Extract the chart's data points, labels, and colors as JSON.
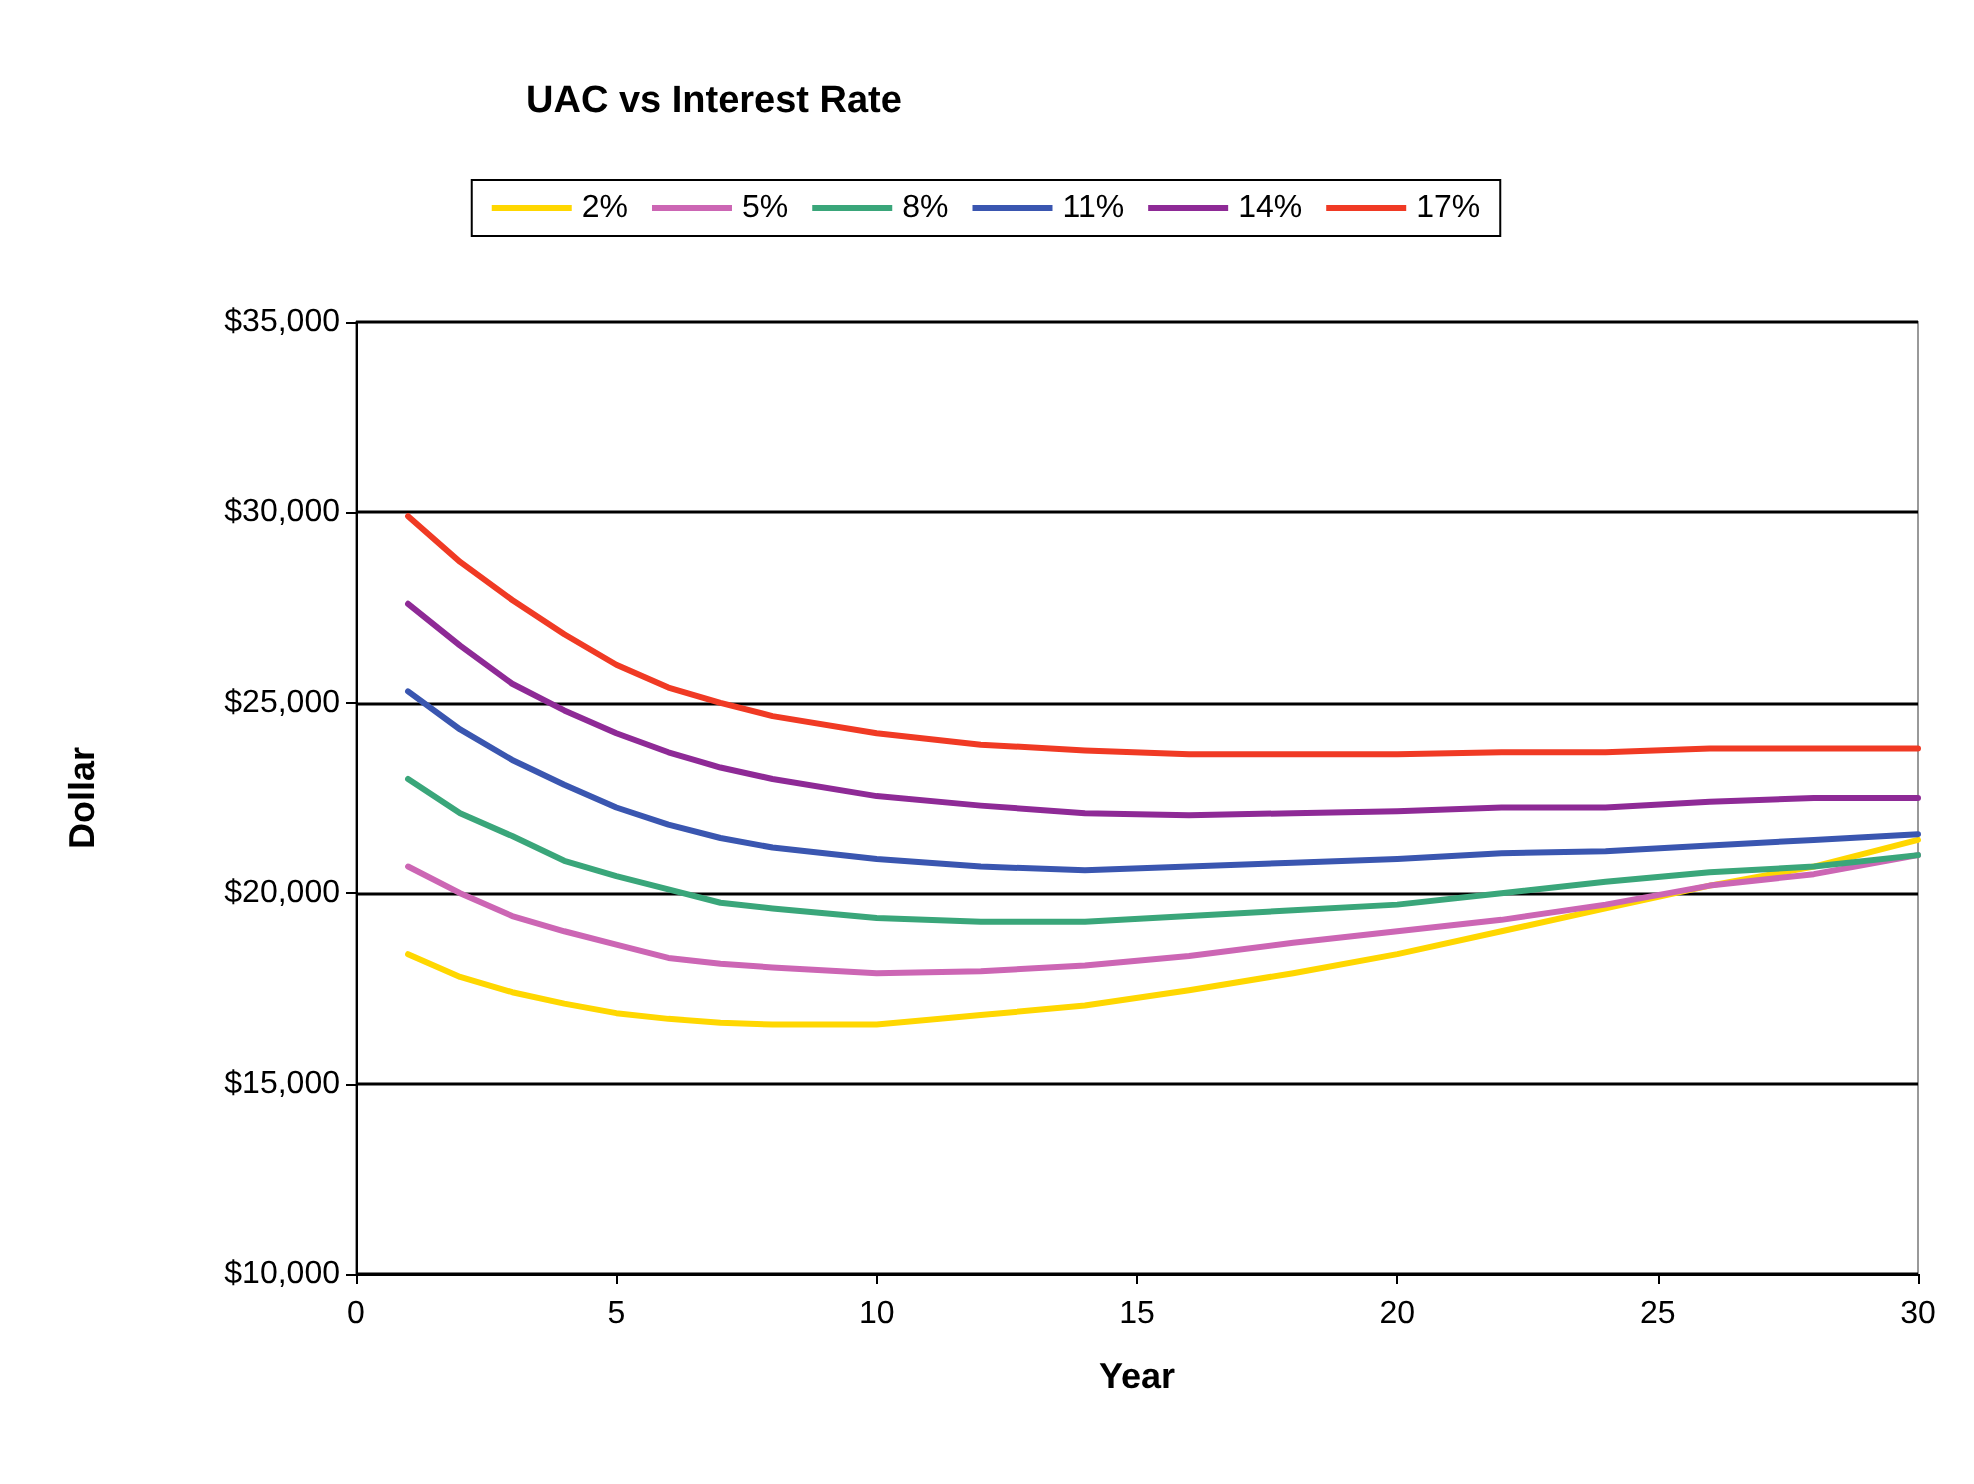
{
  "chart_data": {
    "type": "line",
    "title": "UAC vs Interest Rate",
    "xlabel": "Year",
    "ylabel": "Dollar",
    "x": [
      1,
      2,
      3,
      4,
      5,
      6,
      7,
      8,
      10,
      12,
      14,
      16,
      18,
      20,
      22,
      24,
      26,
      28,
      30
    ],
    "series": [
      {
        "name": "2%",
        "color": "#ffd700",
        "values": [
          18400,
          17800,
          17400,
          17100,
          16850,
          16700,
          16600,
          16550,
          16550,
          16800,
          17050,
          17450,
          17900,
          18400,
          19000,
          19600,
          20200,
          20700,
          21400
        ]
      },
      {
        "name": "5%",
        "color": "#cc66b4",
        "values": [
          20700,
          20000,
          19400,
          19000,
          18650,
          18300,
          18150,
          18050,
          17900,
          17950,
          18100,
          18350,
          18700,
          19000,
          19300,
          19700,
          20200,
          20500,
          21000
        ]
      },
      {
        "name": "8%",
        "color": "#3aa67a",
        "values": [
          23000,
          22100,
          21500,
          20850,
          20450,
          20100,
          19750,
          19600,
          19350,
          19250,
          19250,
          19400,
          19550,
          19700,
          20000,
          20300,
          20550,
          20700,
          21000
        ]
      },
      {
        "name": "11%",
        "color": "#3a56b0",
        "values": [
          25300,
          24300,
          23500,
          22850,
          22250,
          21800,
          21450,
          21200,
          20900,
          20700,
          20600,
          20700,
          20800,
          20900,
          21050,
          21100,
          21250,
          21400,
          21550
        ]
      },
      {
        "name": "14%",
        "color": "#8e2a96",
        "values": [
          27600,
          26500,
          25500,
          24800,
          24200,
          23700,
          23300,
          23000,
          22550,
          22300,
          22100,
          22050,
          22100,
          22150,
          22250,
          22250,
          22400,
          22500,
          22500
        ]
      },
      {
        "name": "17%",
        "color": "#f03a24",
        "values": [
          29900,
          28700,
          27700,
          26800,
          26000,
          25400,
          25000,
          24650,
          24200,
          23900,
          23750,
          23650,
          23650,
          23650,
          23700,
          23700,
          23800,
          23800,
          23800
        ]
      }
    ],
    "xlim": [
      0,
      30
    ],
    "xticks": [
      0,
      5,
      10,
      15,
      20,
      25,
      30
    ],
    "ylim": [
      10000,
      35000
    ],
    "yticks": [
      {
        "value": 10000,
        "label": "$10,000"
      },
      {
        "value": 15000,
        "label": "$15,000"
      },
      {
        "value": 20000,
        "label": "$20,000"
      },
      {
        "value": 25000,
        "label": "$25,000"
      },
      {
        "value": 30000,
        "label": "$30,000"
      },
      {
        "value": 35000,
        "label": "$35,000"
      }
    ],
    "grid": "y",
    "legend": "top",
    "marker": "none",
    "line_style": "solid"
  }
}
